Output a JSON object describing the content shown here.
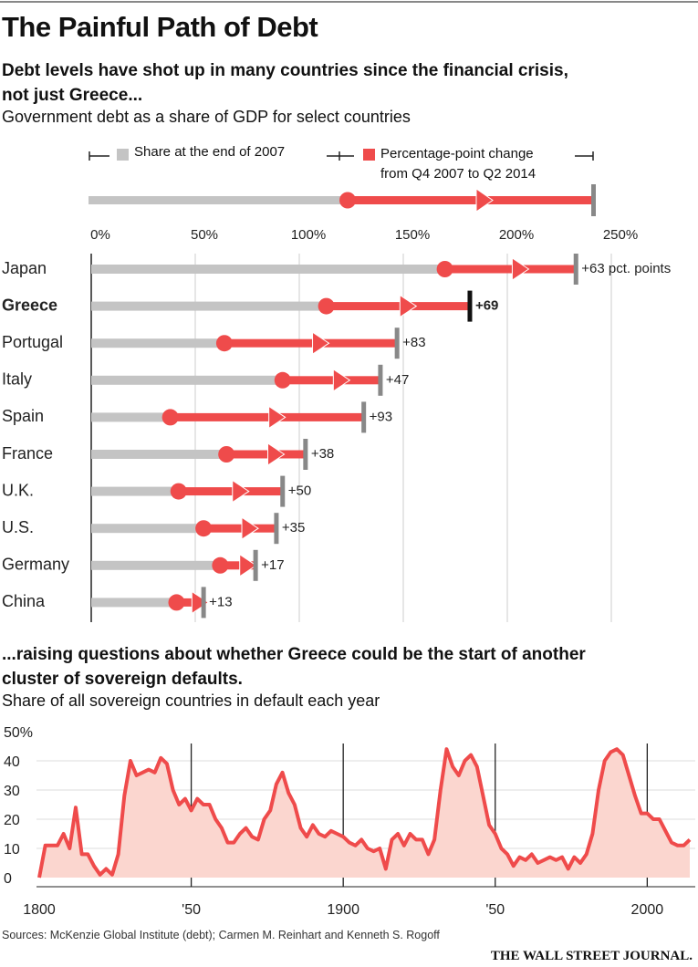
{
  "title": "The Painful Path of Debt",
  "chart_data": [
    {
      "type": "bar",
      "subtitle": "Debt levels have shot up in many countries since the financial crisis, not just Greece...",
      "description": "Government debt as a share of GDP for select countries",
      "categories": [
        "Japan",
        "Greece",
        "Portugal",
        "Italy",
        "Spain",
        "France",
        "U.K.",
        "U.S.",
        "Germany",
        "China"
      ],
      "series": [
        {
          "name": "Share at the end of 2007",
          "color": "#c4c4c4",
          "values": [
            170,
            113,
            64,
            92,
            38,
            65,
            42,
            54,
            62,
            41
          ]
        },
        {
          "name": "Percentage-point change from Q4 2007 to Q2 2014",
          "color": "#ef4b4b",
          "values": [
            63,
            69,
            83,
            47,
            93,
            38,
            50,
            35,
            17,
            13
          ],
          "value_labels": [
            "+63 pct. points",
            "+69",
            "+83",
            "+47",
            "+93",
            "+38",
            "+50",
            "+35",
            "+17",
            "+13"
          ]
        }
      ],
      "xlim": [
        0,
        250
      ],
      "xticks": [
        {
          "value": 0,
          "label": "0%"
        },
        {
          "value": 50,
          "label": "50%"
        },
        {
          "value": 100,
          "label": "100%"
        },
        {
          "value": 150,
          "label": "150%"
        },
        {
          "value": 200,
          "label": "200%"
        },
        {
          "value": 250,
          "label": "250%"
        }
      ],
      "grid": true
    },
    {
      "type": "area",
      "subtitle": "...raising questions about whether Greece could be the start of another cluster of sovereign defaults.",
      "description": "Share of all sovereign countries in default each year",
      "x": [
        1800,
        1802,
        1804,
        1806,
        1808,
        1810,
        1812,
        1814,
        1816,
        1818,
        1820,
        1822,
        1824,
        1826,
        1828,
        1830,
        1832,
        1834,
        1836,
        1838,
        1840,
        1842,
        1844,
        1846,
        1848,
        1850,
        1852,
        1854,
        1856,
        1858,
        1860,
        1862,
        1864,
        1866,
        1868,
        1870,
        1872,
        1874,
        1876,
        1878,
        1880,
        1882,
        1884,
        1886,
        1888,
        1890,
        1892,
        1894,
        1896,
        1898,
        1900,
        1902,
        1904,
        1906,
        1908,
        1910,
        1912,
        1914,
        1916,
        1918,
        1920,
        1922,
        1924,
        1926,
        1928,
        1930,
        1932,
        1934,
        1936,
        1938,
        1940,
        1942,
        1944,
        1946,
        1948,
        1950,
        1952,
        1954,
        1956,
        1958,
        1960,
        1962,
        1964,
        1966,
        1968,
        1970,
        1972,
        1974,
        1976,
        1978,
        1980,
        1982,
        1984,
        1986,
        1988,
        1990,
        1992,
        1994,
        1996,
        1998,
        2000,
        2002,
        2004,
        2006,
        2008,
        2010,
        2012,
        2014
      ],
      "series": [
        {
          "color": "#ef4b4b",
          "fill": "#fbd6cf",
          "values": [
            0,
            11,
            11,
            11,
            15,
            10,
            24,
            8,
            8,
            4,
            1,
            3,
            1,
            8,
            28,
            40,
            35,
            36,
            37,
            36,
            41,
            39,
            30,
            25,
            27,
            23,
            27,
            25,
            25,
            20,
            17,
            12,
            12,
            15,
            17,
            14,
            13,
            20,
            23,
            32,
            36,
            29,
            25,
            17,
            14,
            18,
            15,
            14,
            16,
            15,
            14,
            12,
            11,
            13,
            10,
            9,
            10,
            3,
            13,
            15,
            11,
            15,
            13,
            13,
            8,
            13,
            30,
            44,
            38,
            35,
            40,
            42,
            38,
            28,
            18,
            15,
            10,
            8,
            4,
            7,
            6,
            8,
            5,
            6,
            7,
            6,
            7,
            3,
            7,
            5,
            8,
            15,
            30,
            40,
            43,
            44,
            42,
            35,
            28,
            22,
            22,
            20,
            20,
            16,
            12,
            11,
            11,
            13
          ]
        }
      ],
      "xlim": [
        1800,
        2014
      ],
      "xticks": [
        1800,
        {
          "value": 1850,
          "label": "'50"
        },
        1900,
        {
          "value": 1950,
          "label": "'50"
        },
        2000
      ],
      "ylim": [
        0,
        50
      ],
      "yticks": [
        0,
        10,
        20,
        30,
        40,
        {
          "value": 50,
          "label": "50%"
        }
      ],
      "grid": true
    }
  ],
  "source": "Sources: McKenzie Global Institute (debt); Carmen M. Reinhart and Kenneth S. Rogoff",
  "publisher": "THE WALL STREET JOURNAL."
}
